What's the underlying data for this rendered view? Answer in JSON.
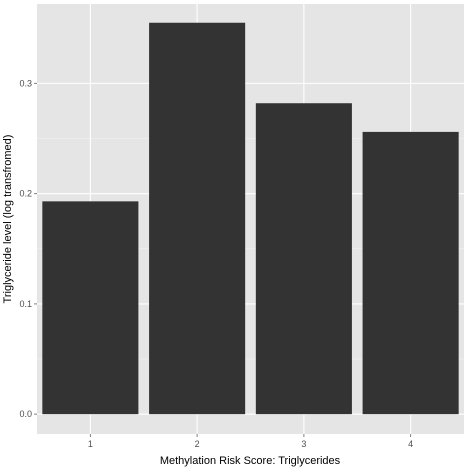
{
  "chart_data": {
    "type": "bar",
    "categories": [
      "1",
      "2",
      "3",
      "4"
    ],
    "values": [
      0.193,
      0.355,
      0.282,
      0.256
    ],
    "title": "",
    "xlabel": "Methylation Risk Score: Triglycerides",
    "ylabel": "Triglyceride level (log transfromed)",
    "ylim": [
      -0.018,
      0.372
    ],
    "yticks": [
      0.0,
      0.1,
      0.2,
      0.3
    ],
    "ytick_labels": [
      "0.0",
      "0.1",
      "0.2",
      "0.3"
    ],
    "grid": true,
    "colors": {
      "panel": "#e5e5e5",
      "grid_major": "#ffffff",
      "grid_minor": "#f2f2f2",
      "bar": "#333333",
      "tick": "#7f7f7f"
    }
  }
}
